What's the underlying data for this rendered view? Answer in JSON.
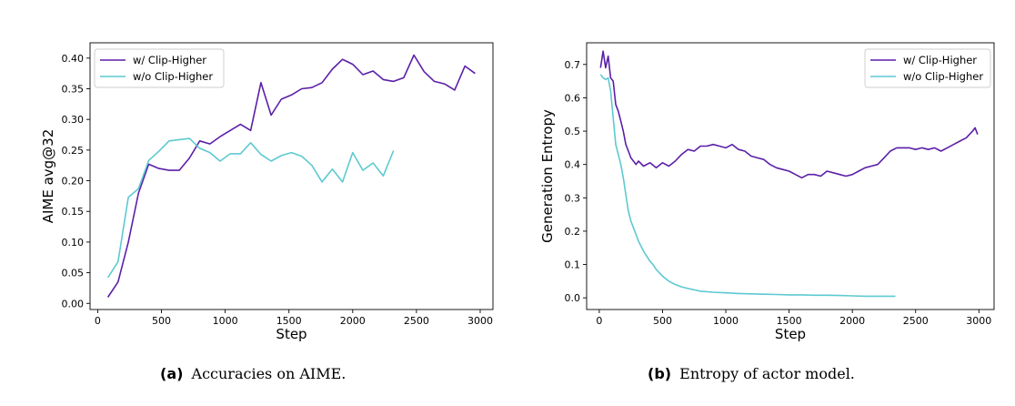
{
  "colors": {
    "with": "#5b1fa8",
    "without": "#5dc9d1"
  },
  "captions": [
    {
      "tag": "(a)",
      "text": "Accuracies on AIME."
    },
    {
      "tag": "(b)",
      "text": "Entropy of actor model."
    }
  ],
  "chart_data": [
    {
      "type": "line",
      "title": "",
      "xlabel": "Step",
      "ylabel": "AIME avg@32",
      "xlim": [
        -60,
        3100
      ],
      "ylim": [
        -0.01,
        0.425
      ],
      "xticks": [
        0,
        500,
        1000,
        1500,
        2000,
        2500,
        3000
      ],
      "xtick_labels": [
        "0",
        "500",
        "1000",
        "1500",
        "2000",
        "2500",
        "3000"
      ],
      "yticks": [
        0.0,
        0.05,
        0.1,
        0.15,
        0.2,
        0.25,
        0.3,
        0.35,
        0.4
      ],
      "ytick_labels": [
        "0.00",
        "0.05",
        "0.10",
        "0.15",
        "0.20",
        "0.25",
        "0.30",
        "0.35",
        "0.40"
      ],
      "legend_position": "upper-left",
      "series": [
        {
          "name": "w/ Clip-Higher",
          "color_key": "with",
          "x": [
            80,
            160,
            240,
            320,
            400,
            480,
            560,
            640,
            720,
            800,
            880,
            960,
            1040,
            1120,
            1200,
            1280,
            1360,
            1440,
            1520,
            1600,
            1680,
            1760,
            1840,
            1920,
            2000,
            2080,
            2160,
            2240,
            2320,
            2400,
            2480,
            2560,
            2640,
            2720,
            2800,
            2880,
            2960
          ],
          "y": [
            0.01,
            0.035,
            0.1,
            0.18,
            0.227,
            0.22,
            0.217,
            0.217,
            0.237,
            0.265,
            0.26,
            0.272,
            0.282,
            0.292,
            0.282,
            0.36,
            0.307,
            0.333,
            0.34,
            0.35,
            0.352,
            0.36,
            0.382,
            0.398,
            0.39,
            0.373,
            0.379,
            0.365,
            0.362,
            0.368,
            0.405,
            0.378,
            0.362,
            0.358,
            0.348,
            0.387,
            0.375
          ]
        },
        {
          "name": "w/o Clip-Higher",
          "color_key": "without",
          "x": [
            80,
            160,
            240,
            320,
            400,
            480,
            560,
            640,
            720,
            800,
            880,
            960,
            1040,
            1120,
            1200,
            1280,
            1360,
            1440,
            1520,
            1600,
            1680,
            1760,
            1840,
            1920,
            2000,
            2080,
            2160,
            2240,
            2320
          ],
          "y": [
            0.042,
            0.068,
            0.173,
            0.187,
            0.233,
            0.248,
            0.265,
            0.267,
            0.269,
            0.253,
            0.246,
            0.232,
            0.244,
            0.244,
            0.262,
            0.243,
            0.232,
            0.241,
            0.246,
            0.24,
            0.225,
            0.198,
            0.219,
            0.198,
            0.246,
            0.217,
            0.229,
            0.208,
            0.249
          ]
        }
      ]
    },
    {
      "type": "line",
      "title": "",
      "xlabel": "Step",
      "ylabel": "Generation Entropy",
      "xlim": [
        -100,
        3120
      ],
      "ylim": [
        -0.035,
        0.765
      ],
      "xticks": [
        0,
        500,
        1000,
        1500,
        2000,
        2500,
        3000
      ],
      "xtick_labels": [
        "0",
        "500",
        "1000",
        "1500",
        "2000",
        "2500",
        "3000"
      ],
      "yticks": [
        0.0,
        0.1,
        0.2,
        0.3,
        0.4,
        0.5,
        0.6,
        0.7
      ],
      "ytick_labels": [
        "0.0",
        "0.1",
        "0.2",
        "0.3",
        "0.4",
        "0.5",
        "0.6",
        "0.7"
      ],
      "legend_position": "upper-right",
      "series": [
        {
          "name": "w/ Clip-Higher",
          "color_key": "with",
          "x": [
            10,
            30,
            50,
            70,
            90,
            110,
            130,
            150,
            170,
            190,
            210,
            230,
            250,
            270,
            290,
            310,
            350,
            400,
            450,
            500,
            550,
            600,
            650,
            700,
            750,
            800,
            850,
            900,
            950,
            1000,
            1050,
            1100,
            1150,
            1200,
            1250,
            1300,
            1350,
            1400,
            1450,
            1500,
            1550,
            1600,
            1650,
            1700,
            1750,
            1800,
            1850,
            1900,
            1950,
            2000,
            2050,
            2100,
            2150,
            2200,
            2250,
            2300,
            2350,
            2400,
            2450,
            2500,
            2550,
            2600,
            2650,
            2700,
            2750,
            2800,
            2850,
            2900,
            2950,
            2970,
            2990
          ],
          "y": [
            0.69,
            0.74,
            0.69,
            0.725,
            0.66,
            0.65,
            0.58,
            0.56,
            0.53,
            0.5,
            0.46,
            0.44,
            0.42,
            0.41,
            0.4,
            0.41,
            0.395,
            0.405,
            0.39,
            0.405,
            0.395,
            0.41,
            0.43,
            0.445,
            0.44,
            0.455,
            0.455,
            0.46,
            0.455,
            0.45,
            0.46,
            0.445,
            0.44,
            0.425,
            0.42,
            0.415,
            0.4,
            0.39,
            0.385,
            0.38,
            0.37,
            0.36,
            0.37,
            0.37,
            0.365,
            0.38,
            0.375,
            0.37,
            0.365,
            0.37,
            0.38,
            0.39,
            0.395,
            0.4,
            0.42,
            0.44,
            0.45,
            0.45,
            0.45,
            0.445,
            0.45,
            0.445,
            0.45,
            0.44,
            0.45,
            0.46,
            0.47,
            0.48,
            0.5,
            0.51,
            0.49
          ]
        },
        {
          "name": "w/o Clip-Higher",
          "color_key": "without",
          "x": [
            10,
            30,
            50,
            70,
            90,
            110,
            130,
            150,
            170,
            190,
            210,
            230,
            250,
            270,
            290,
            310,
            330,
            350,
            375,
            400,
            425,
            450,
            475,
            500,
            550,
            600,
            650,
            700,
            750,
            800,
            900,
            1000,
            1100,
            1200,
            1300,
            1400,
            1500,
            1600,
            1700,
            1800,
            1900,
            2000,
            2100,
            2200,
            2340
          ],
          "y": [
            0.67,
            0.66,
            0.655,
            0.66,
            0.62,
            0.54,
            0.46,
            0.43,
            0.4,
            0.36,
            0.31,
            0.26,
            0.23,
            0.21,
            0.19,
            0.17,
            0.155,
            0.14,
            0.125,
            0.11,
            0.1,
            0.085,
            0.075,
            0.065,
            0.05,
            0.04,
            0.033,
            0.028,
            0.024,
            0.02,
            0.017,
            0.015,
            0.013,
            0.012,
            0.011,
            0.01,
            0.009,
            0.009,
            0.008,
            0.008,
            0.007,
            0.006,
            0.005,
            0.005,
            0.005
          ]
        }
      ]
    }
  ]
}
